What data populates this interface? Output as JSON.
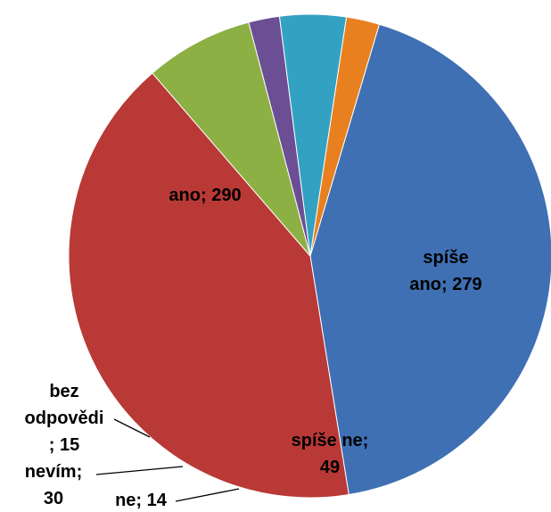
{
  "chart_data": {
    "type": "pie",
    "values": [
      290,
      279,
      49,
      14,
      30,
      15
    ],
    "value_labels": [
      "ano; 290",
      "spíše\nano; 279",
      "spíše ne;\n49",
      "ne; 14",
      "nevím;\n30",
      "bez\nodpovědi\n; 15"
    ],
    "colors": [
      "#3f70b4",
      "#b93936",
      "#8cb044",
      "#6b4e94",
      "#33a2c2",
      "#e8801f"
    ],
    "start_angle": 16.6
  }
}
